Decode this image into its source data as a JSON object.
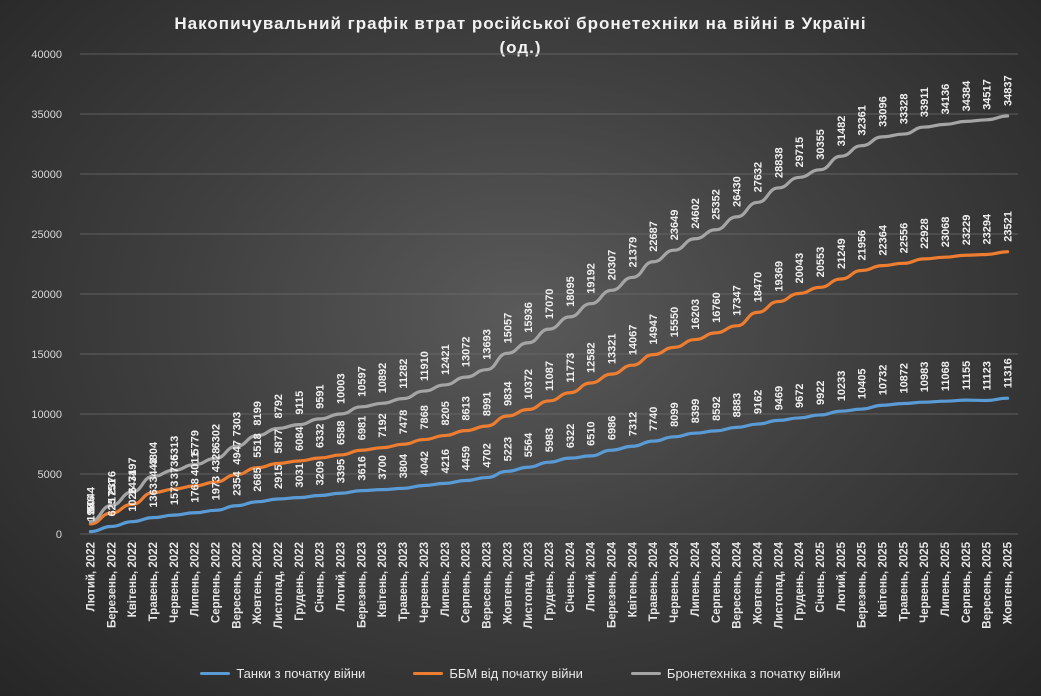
{
  "chart_data": {
    "type": "line",
    "title": "Накопичувальний графік втрат російської бронетехніки на війні в Україні",
    "subtitle": "(од.)",
    "xlabel": "",
    "ylabel": "",
    "ylim": [
      0,
      40000
    ],
    "yticks": [
      "0",
      "5000",
      "10000",
      "15000",
      "20000",
      "25000",
      "30000",
      "35000",
      "40000"
    ],
    "grid": true,
    "legend_position": "bottom",
    "categories": [
      "Лютий, 2022",
      "Березень, 2022",
      "Квітень, 2022",
      "Травень, 2022",
      "Червень, 2022",
      "Липень, 2022",
      "Серпень, 2022",
      "Вересень, 2022",
      "Жовтень, 2022",
      "Листопад, 2022",
      "Грудень, 2022",
      "Січень, 2023",
      "Лютий, 2023",
      "Березень, 2023",
      "Квітень, 2023",
      "Травень, 2023",
      "Червень, 2023",
      "Липень, 2023",
      "Серпень, 2023",
      "Вересень, 2023",
      "Жовтень, 2023",
      "Листопад, 2023",
      "Грудень, 2023",
      "Січень, 2024",
      "Лютий, 2024",
      "Березень, 2024",
      "Квітень, 2024",
      "Травень, 2024",
      "Червень, 2024",
      "Липень, 2024",
      "Серпень, 2024",
      "Вересень, 2024",
      "Жовтень, 2024",
      "Листопад, 2024",
      "Грудень, 2024",
      "Січень, 2025",
      "Лютий, 2025",
      "Березень, 2025",
      "Квітень, 2025",
      "Травень, 2025",
      "Червень, 2025",
      "Липень, 2025",
      "Серпень, 2025",
      "Вересень, 2025",
      "Жовтень, 2025"
    ],
    "series": [
      {
        "name": "Танки з початку війни",
        "color": "#5b9bd5",
        "values": [
          198,
          625,
          1026,
          1363,
          1573,
          1768,
          1973,
          2354,
          2685,
          2915,
          3031,
          3209,
          3395,
          3616,
          3700,
          3804,
          4042,
          4216,
          4459,
          4702,
          5223,
          5564,
          5983,
          6322,
          6510,
          6986,
          7312,
          7740,
          8099,
          8399,
          8592,
          8883,
          9162,
          9469,
          9672,
          9922,
          10233,
          10405,
          10732,
          10872,
          10983,
          11068,
          11155,
          11123,
          11316
        ]
      },
      {
        "name": "ББМ від початку війни",
        "color": "#ed7d31",
        "values": [
          846,
          1751,
          2471,
          3443,
          3736,
          4011,
          4328,
          4947,
          5518,
          5877,
          6084,
          6332,
          6588,
          6981,
          7192,
          7478,
          7868,
          8205,
          8613,
          8991,
          9834,
          10372,
          11087,
          11773,
          12582,
          13321,
          14067,
          14947,
          15550,
          16203,
          16760,
          17347,
          18470,
          19369,
          20043,
          20553,
          21249,
          21956,
          22364,
          22556,
          22928,
          23068,
          23229,
          23294,
          23521
        ]
      },
      {
        "name": "Бронетехніка з початку війни",
        "color": "#a5a5a5",
        "values": [
          1044,
          2376,
          3497,
          4804,
          5313,
          5779,
          6302,
          7303,
          8199,
          8792,
          9115,
          9591,
          10003,
          10597,
          10892,
          11282,
          11910,
          12421,
          13072,
          13693,
          15057,
          15936,
          17070,
          18095,
          19192,
          20307,
          21379,
          22687,
          23649,
          24602,
          25352,
          26430,
          27632,
          28838,
          29715,
          30355,
          31482,
          32361,
          33096,
          33328,
          33911,
          34136,
          34384,
          34517,
          34837
        ]
      }
    ]
  }
}
